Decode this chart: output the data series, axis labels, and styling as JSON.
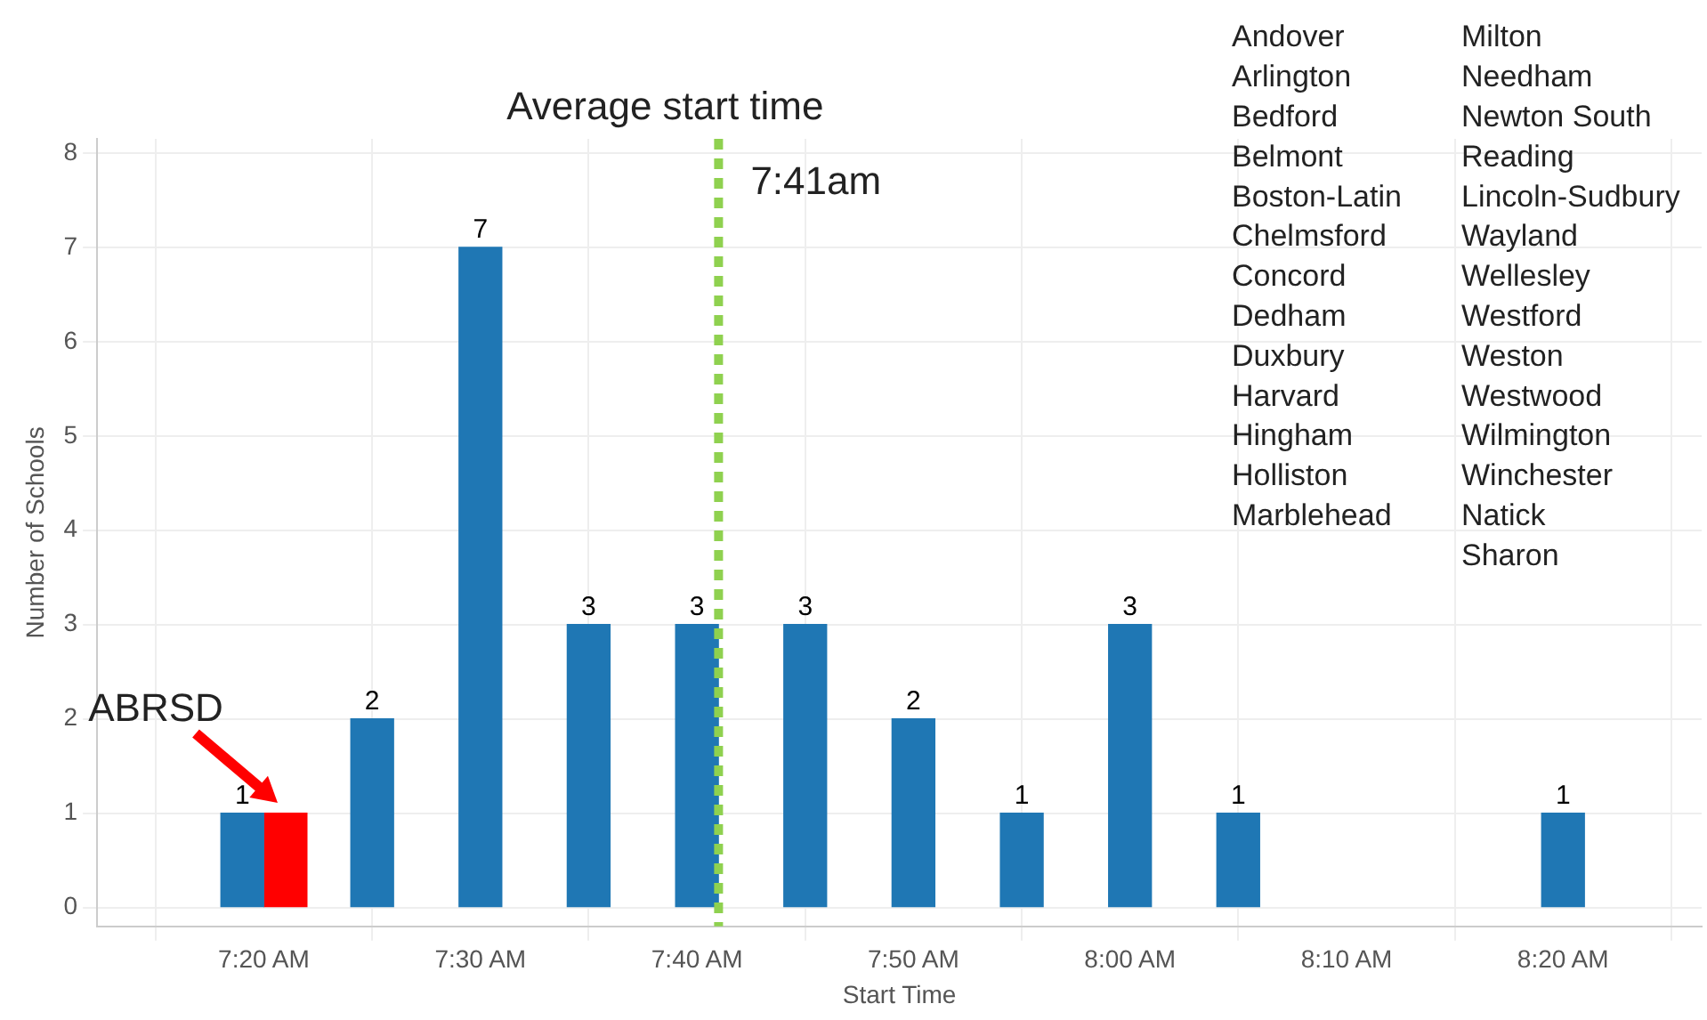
{
  "chart_data": {
    "type": "bar",
    "xlabel": "Start Time",
    "ylabel": "Number of Schools",
    "series": [
      {
        "color": "#1f77b4",
        "x": [
          7.3167,
          7.4167,
          7.5,
          7.5833,
          7.6667,
          7.75,
          7.8333,
          7.9167,
          8.0,
          8.0833,
          8.3333
        ],
        "values": [
          1,
          2,
          7,
          3,
          3,
          3,
          2,
          1,
          3,
          1,
          1
        ],
        "value_labels": [
          "1",
          "2",
          "7",
          "3",
          "3",
          "3",
          "2",
          "1",
          "3",
          "1",
          "1"
        ]
      },
      {
        "color": "#ff0000",
        "x": [
          7.35
        ],
        "values": [
          1
        ],
        "value_labels": [
          null
        ]
      }
    ],
    "xlim": [
      7.205,
      8.44
    ],
    "xticks": [
      {
        "value": 7.3333,
        "label": "7:20 AM"
      },
      {
        "value": 7.5,
        "label": "7:30 AM"
      },
      {
        "value": 7.6667,
        "label": "7:40 AM"
      },
      {
        "value": 7.8333,
        "label": "7:50 AM"
      },
      {
        "value": 8.0,
        "label": "8:00 AM"
      },
      {
        "value": 8.1667,
        "label": "8:10 AM"
      },
      {
        "value": 8.3333,
        "label": "8:20 AM"
      }
    ],
    "ylim": [
      -0.2,
      8.15
    ],
    "yticks": [
      0,
      1,
      2,
      3,
      4,
      5,
      6,
      7,
      8
    ],
    "grid": true,
    "ref_lines": [
      {
        "axis": "x",
        "value": 7.6833,
        "label": "Average start time",
        "color": "#8fd14f",
        "line_style": "dotted"
      }
    ],
    "annotations": [
      {
        "text": "7:41am",
        "x": 7.6833,
        "y": 8
      },
      {
        "text": "ABRSD",
        "x": 7.35,
        "y": 1
      },
      "Andover",
      "Arlington",
      "Bedford",
      "Belmont",
      "Boston-Latin",
      "Chelmsford",
      "Concord",
      "Dedham",
      "Duxbury",
      "Harvard",
      "Hingham",
      "Holliston",
      "Marblehead",
      "Milton",
      "Needham",
      "Newton South",
      "Reading",
      "Lincoln-Sudbury",
      "Wayland",
      "Wellesley",
      "Westford",
      "Weston",
      "Westwood",
      "Wilmington",
      "Winchester",
      "Natick",
      "Sharon"
    ]
  }
}
